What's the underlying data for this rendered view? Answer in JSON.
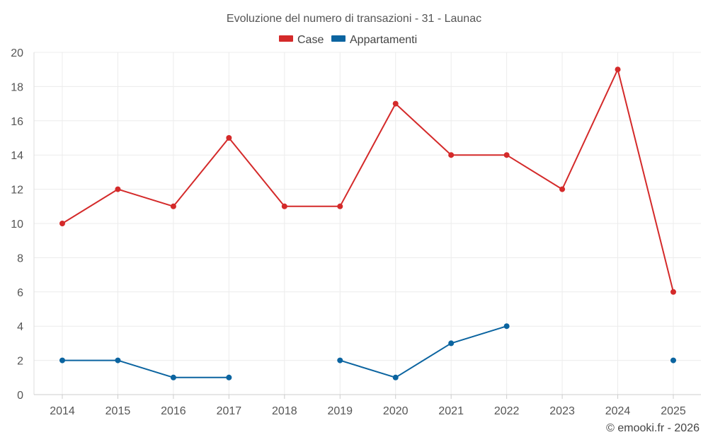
{
  "chart_data": {
    "type": "line",
    "title": "Evoluzione del numero di transazioni - 31 - Launac",
    "categories": [
      "2014",
      "2015",
      "2016",
      "2017",
      "2018",
      "2019",
      "2020",
      "2021",
      "2022",
      "2023",
      "2024",
      "2025"
    ],
    "series": [
      {
        "name": "Case",
        "color": "#d42a2a",
        "values": [
          10,
          12,
          11,
          15,
          11,
          11,
          17,
          14,
          14,
          12,
          19,
          6
        ]
      },
      {
        "name": "Appartamenti",
        "color": "#0b64a0",
        "values": [
          2,
          2,
          1,
          1,
          null,
          2,
          1,
          3,
          4,
          null,
          null,
          2
        ]
      }
    ],
    "ylim": [
      0,
      20
    ],
    "yticks": [
      0,
      2,
      4,
      6,
      8,
      10,
      12,
      14,
      16,
      18,
      20
    ],
    "grid": true,
    "legend_position": "top-center"
  },
  "credit": "© emooki.fr - 2026"
}
